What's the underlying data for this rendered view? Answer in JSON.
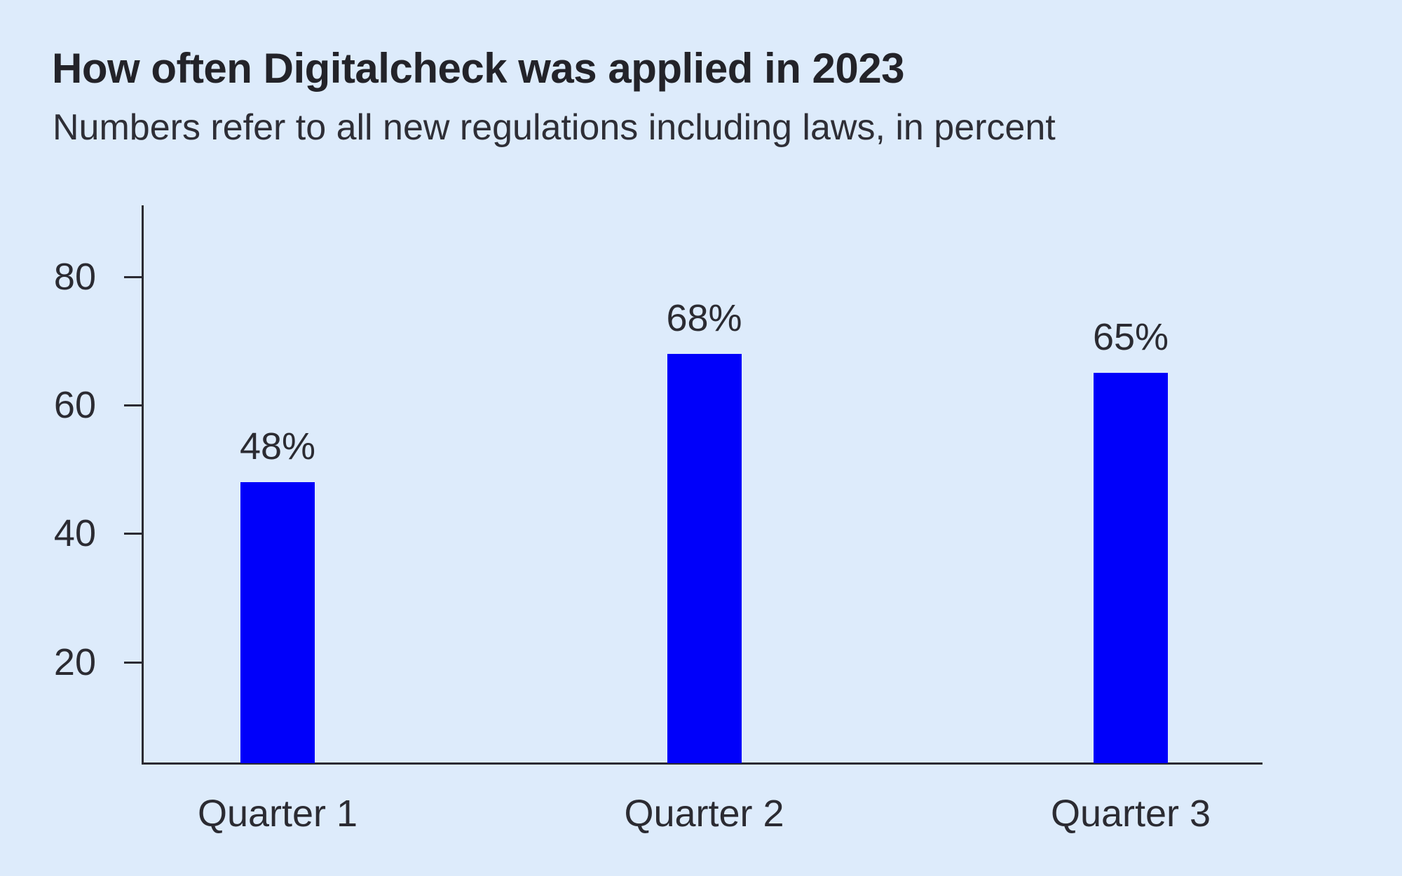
{
  "page": {
    "title": "How often Digitalcheck was applied in 2023",
    "subtitle": "Numbers refer to all new regulations including laws, in percent"
  },
  "chart_data": {
    "type": "bar",
    "title": "How often Digitalcheck was applied in 2023",
    "subtitle": "Numbers refer to all new regulations including laws, in percent",
    "categories": [
      "Quarter 1",
      "Quarter 2",
      "Quarter 3"
    ],
    "values": [
      48,
      68,
      65
    ],
    "value_labels": [
      "48%",
      "68%",
      "65%"
    ],
    "unit": "percent",
    "xlabel": "",
    "ylabel": "",
    "y_ticks": [
      20,
      40,
      60,
      80
    ],
    "ylim": [
      4,
      91
    ],
    "grid": false,
    "legend": false,
    "colors": {
      "bar": "#0000fa",
      "background": "#ddebfb",
      "text": "#2b2b32",
      "axis": "#2b2b32"
    }
  }
}
